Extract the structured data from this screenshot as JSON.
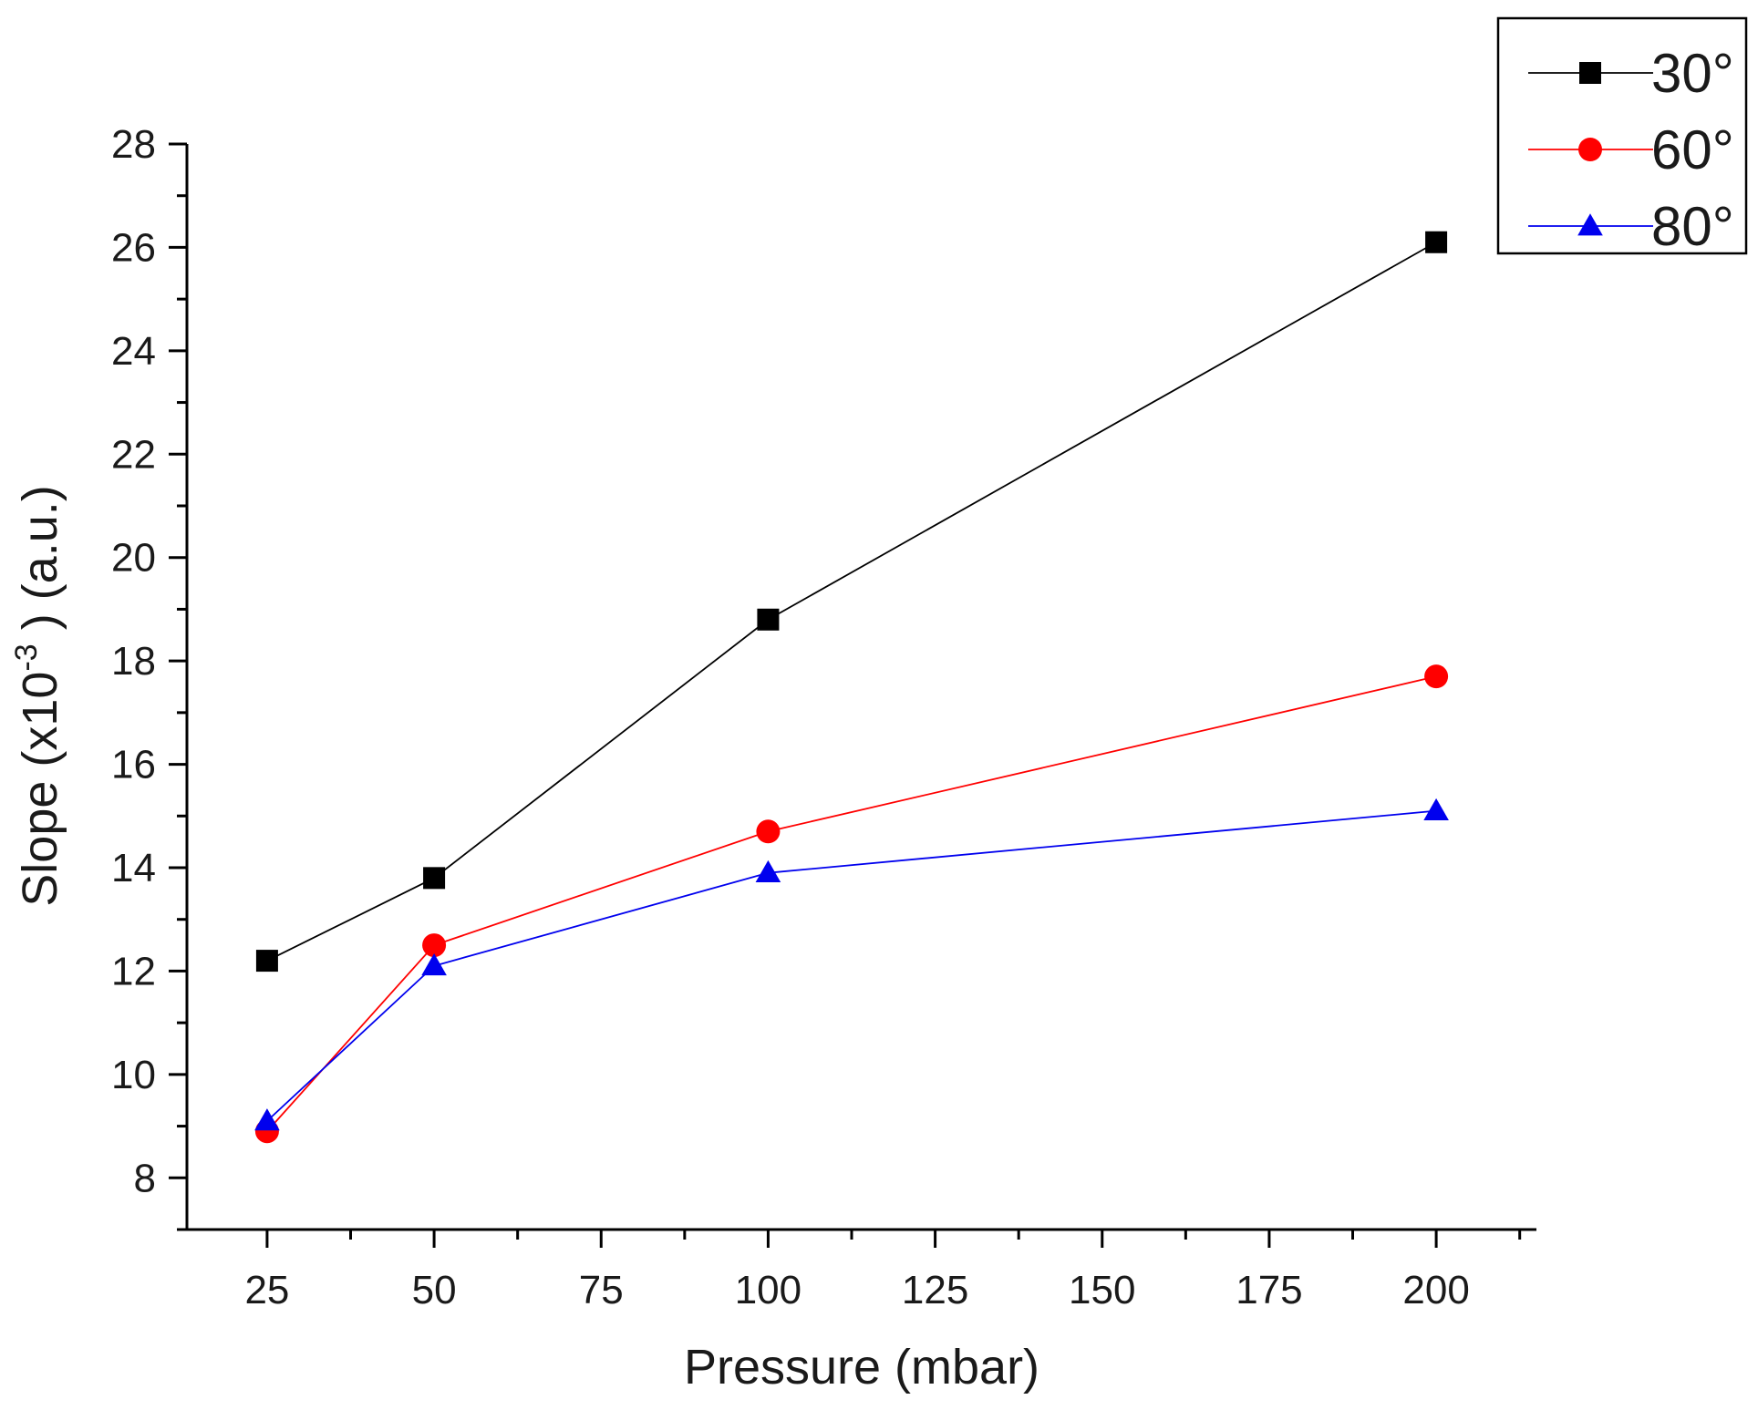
{
  "chart_data": {
    "type": "line",
    "title": "",
    "xlabel": "Pressure (mbar)",
    "ylabel": {
      "prefix": "Slope (x10",
      "exponent": "-3",
      "suffix": " ) (a.u.)"
    },
    "xlim": [
      13,
      215
    ],
    "ylim": [
      7.0,
      28.0
    ],
    "x_ticks": [
      25,
      50,
      75,
      100,
      125,
      150,
      175,
      200
    ],
    "x_tick_labels": [
      "25",
      "50",
      "75",
      "100",
      "125",
      "150",
      "175",
      "200"
    ],
    "y_ticks": [
      8,
      10,
      12,
      14,
      16,
      18,
      20,
      22,
      24,
      26,
      28
    ],
    "y_tick_labels": [
      "8",
      "10",
      "12",
      "14",
      "16",
      "18",
      "20",
      "22",
      "24",
      "26",
      "28"
    ],
    "grid": false,
    "legend_position": "top-right",
    "x": [
      25,
      50,
      100,
      200
    ],
    "series": [
      {
        "name": "30°",
        "values": [
          12.2,
          13.8,
          18.8,
          26.1
        ],
        "color": "#000000",
        "marker": "square"
      },
      {
        "name": "60°",
        "values": [
          8.9,
          12.5,
          14.7,
          17.7
        ],
        "color": "#ff0000",
        "marker": "circle"
      },
      {
        "name": "80°",
        "values": [
          9.1,
          12.1,
          13.9,
          15.1
        ],
        "color": "#0000ee",
        "marker": "triangle"
      }
    ]
  }
}
